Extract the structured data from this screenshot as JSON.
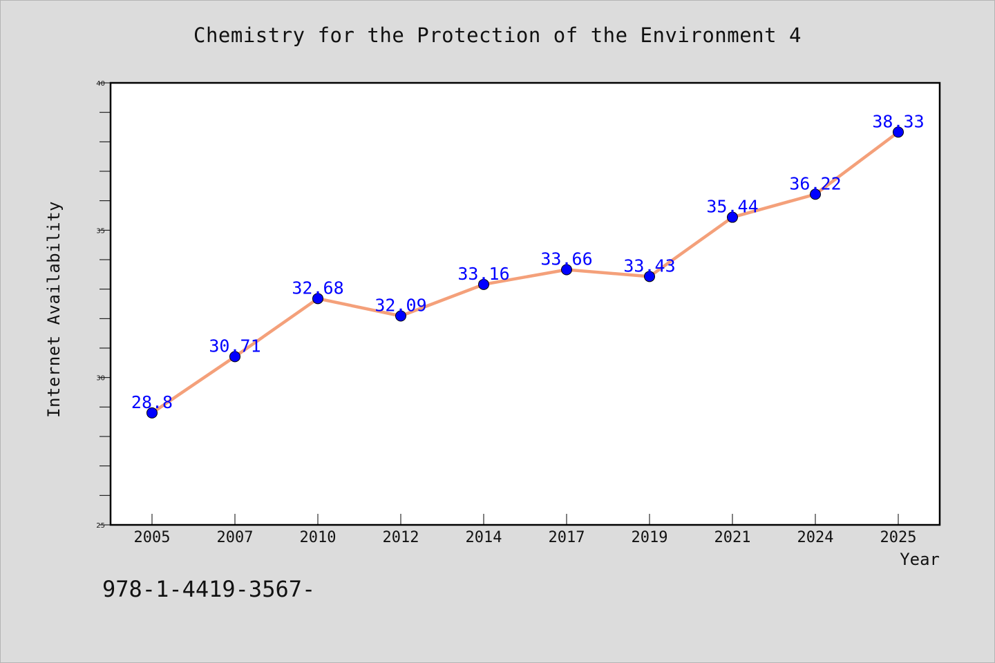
{
  "chart_data": {
    "type": "line",
    "title": "Chemistry for the Protection of the Environment 4",
    "xlabel": "Year",
    "ylabel": "Internet Availability",
    "categories": [
      "2005",
      "2007",
      "2010",
      "2012",
      "2014",
      "2017",
      "2019",
      "2021",
      "2024",
      "2025"
    ],
    "series": [
      {
        "values": [
          28.8,
          30.71,
          32.68,
          32.09,
          33.16,
          33.66,
          33.43,
          35.44,
          36.22,
          38.33
        ],
        "labels": [
          "28.8",
          "30.71",
          "32.68",
          "32.09",
          "33.16",
          "33.66",
          "33.43",
          "35.44",
          "36.22",
          "38.33"
        ],
        "color": "#f4a07a",
        "marker_color": "#0000ff"
      }
    ],
    "ylim": [
      25,
      40
    ],
    "yticks": [
      "25",
      "30",
      "35",
      "40"
    ],
    "y_minor_step": 1,
    "grid": false,
    "legend": "none",
    "label_color": "#0000ff"
  },
  "footer_text": "978-1-4419-3567-"
}
